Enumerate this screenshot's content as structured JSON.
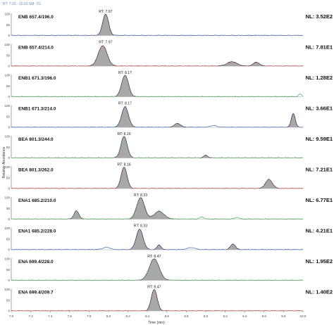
{
  "header": {
    "text": "RT: 7.00 - 10.02   SM: 7G"
  },
  "chart_data": {
    "type": "line",
    "xlabel": "Time (min)",
    "ylabel": "Relative Abundance",
    "xlim": [
      7.0,
      10.0
    ],
    "x_ticks": [
      "7.0",
      "7.2",
      "7.4",
      "7.6",
      "7.8",
      "8.0",
      "8.2",
      "8.4",
      "8.6",
      "8.8",
      "9.0",
      "9.2",
      "9.4",
      "9.6",
      "9.8",
      "10.0"
    ],
    "ylim": [
      0,
      100
    ],
    "y_ticks": [
      "0",
      "50",
      "100"
    ],
    "panels": [
      {
        "label": "ENB 657.4/196.0",
        "nl": "NL: 3.52E2",
        "rt_label": "RT: 7.97",
        "rt": 7.97,
        "fill_color": "#a8a8a8",
        "line_color": "#2b4fb0",
        "peaks": [
          {
            "center": 7.97,
            "width": 0.03,
            "height": 100,
            "filled": true
          }
        ]
      },
      {
        "label": "ENB 657.4/214.0",
        "nl": "NL: 7.81E1",
        "rt_label": "RT: 7.97",
        "rt": 7.97,
        "fill_color": "#a8a8a8",
        "line_color": "#c02a2a",
        "peaks": [
          {
            "center": 7.94,
            "width": 0.045,
            "height": 95,
            "filled": true
          },
          {
            "center": 9.27,
            "width": 0.05,
            "height": 20,
            "filled": true
          },
          {
            "center": 9.52,
            "width": 0.03,
            "height": 18,
            "filled": true
          }
        ]
      },
      {
        "label": "ENB1 671.3/196.0",
        "nl": "NL: 1.28E2",
        "rt_label": "RT: 8.17",
        "rt": 8.17,
        "fill_color": "#a8a8a8",
        "line_color": "#2e9a3a",
        "peaks": [
          {
            "center": 8.17,
            "width": 0.035,
            "height": 100,
            "filled": true
          },
          {
            "center": 9.97,
            "width": 0.015,
            "height": 12,
            "filled": false
          }
        ]
      },
      {
        "label": "ENB1 671.3/214.0",
        "nl": "NL: 3.66E1",
        "rt_label": "RT: 8.17",
        "rt": 8.17,
        "fill_color": "#a8a8a8",
        "line_color": "#2b4fb0",
        "peaks": [
          {
            "center": 8.17,
            "width": 0.035,
            "height": 95,
            "filled": true
          },
          {
            "center": 8.71,
            "width": 0.03,
            "height": 18,
            "filled": true
          },
          {
            "center": 9.08,
            "width": 0.03,
            "height": 8,
            "filled": false
          },
          {
            "center": 9.9,
            "width": 0.02,
            "height": 65,
            "filled": true
          }
        ]
      },
      {
        "label": "BEA 801.3/244.0",
        "nl": "NL: 9.59E1",
        "rt_label": "RT: 8.16",
        "rt": 8.16,
        "fill_color": "#a8a8a8",
        "line_color": "#2e9a3a",
        "peaks": [
          {
            "center": 8.16,
            "width": 0.032,
            "height": 100,
            "filled": true
          },
          {
            "center": 9.0,
            "width": 0.02,
            "height": 12,
            "filled": true
          }
        ]
      },
      {
        "label": "BEA 801.3/262.0",
        "nl": "NL: 7.21E1",
        "rt_label": "RT: 8.16",
        "rt": 8.16,
        "fill_color": "#a8a8a8",
        "line_color": "#c02a2a",
        "peaks": [
          {
            "center": 8.16,
            "width": 0.03,
            "height": 100,
            "filled": true
          },
          {
            "center": 9.65,
            "width": 0.035,
            "height": 42,
            "filled": true
          }
        ]
      },
      {
        "label": "ENA1 685.2/210.0",
        "nl": "NL: 6.77E1",
        "rt_label": "RT: 8.33",
        "rt": 8.33,
        "fill_color": "#a8a8a8",
        "line_color": "#2e9a3a",
        "peaks": [
          {
            "center": 7.67,
            "width": 0.025,
            "height": 38,
            "filled": true
          },
          {
            "center": 8.33,
            "width": 0.04,
            "height": 100,
            "filled": true
          },
          {
            "center": 8.52,
            "width": 0.05,
            "height": 36,
            "filled": true
          },
          {
            "center": 8.96,
            "width": 0.02,
            "height": 10,
            "filled": false
          },
          {
            "center": 9.32,
            "width": 0.02,
            "height": 8,
            "filled": false
          }
        ]
      },
      {
        "label": "ENA1 685.2/228.0",
        "nl": "NL: 4.21E1",
        "rt_label": "RT: 8.33",
        "rt": 8.33,
        "fill_color": "#a8a8a8",
        "line_color": "#2b4fb0",
        "peaks": [
          {
            "center": 8.32,
            "width": 0.035,
            "height": 95,
            "filled": true
          },
          {
            "center": 8.52,
            "width": 0.02,
            "height": 22,
            "filled": true
          },
          {
            "center": 9.28,
            "width": 0.025,
            "height": 26,
            "filled": true
          },
          {
            "center": 7.98,
            "width": 0.04,
            "height": 10,
            "filled": false
          },
          {
            "center": 8.85,
            "width": 0.04,
            "height": 9,
            "filled": false
          }
        ]
      },
      {
        "label": "ENA 699.4/228.0",
        "nl": "NL: 1.95E2",
        "rt_label": "RT: 8.47",
        "rt": 8.47,
        "fill_color": "#a8a8a8",
        "line_color": "#2e9a3a",
        "peaks": [
          {
            "center": 8.47,
            "width": 0.05,
            "height": 100,
            "filled": true
          }
        ]
      },
      {
        "label": "ENA 699.4/209.7",
        "nl": "NL: 1.40E2",
        "rt_label": "RT: 8.47",
        "rt": 8.47,
        "fill_color": "#a8a8a8",
        "line_color": "#c02a2a",
        "peaks": [
          {
            "center": 8.47,
            "width": 0.03,
            "height": 100,
            "filled": true
          }
        ]
      }
    ]
  }
}
